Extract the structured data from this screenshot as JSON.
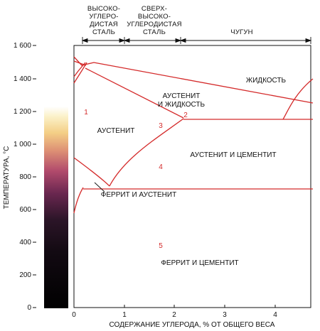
{
  "axes": {
    "ylabel": "ТЕМПЕРАТУРА, °С",
    "xlabel": "СОДЕРЖАНИЕ УГЛЕРОДА, % ОТ ОБЩЕГО ВЕСА",
    "yticks": [
      "0",
      "200",
      "400",
      "600",
      "800",
      "1 000",
      "1 200",
      "1 400",
      "1 600"
    ],
    "xticks": [
      "0",
      "1",
      "2",
      "3",
      "4"
    ]
  },
  "header": {
    "high_carbon": [
      "ВЫСОКО-",
      "УГЛЕРО-",
      "ДИСТАЯ",
      "СТАЛЬ"
    ],
    "ultra_high_carbon": [
      "СВЕРХ-",
      "ВЫСОКО-",
      "УГЛЕРОДИСТАЯ",
      "СТАЛЬ"
    ],
    "cast_iron": "ЧУГУН"
  },
  "regions": {
    "liquid": "ЖИДКОСТЬ",
    "austenite_liquid": [
      "АУСТЕНИТ",
      "И ЖИДКОСТЬ"
    ],
    "austenite": "АУСТЕНИТ",
    "austenite_cementite": "АУСТЕНИТ И ЦЕМЕНТИТ",
    "ferrite_austenite": "ФЕРРИТ И АУСТЕНИТ",
    "ferrite_cementite": "ФЕРРИТ И ЦЕМЕНТИТ"
  },
  "markers": [
    "1",
    "2",
    "3",
    "4",
    "5"
  ],
  "colors": {
    "phase_line": "#d42a2a",
    "axis": "#111111",
    "marker": "#d42a2a"
  }
}
